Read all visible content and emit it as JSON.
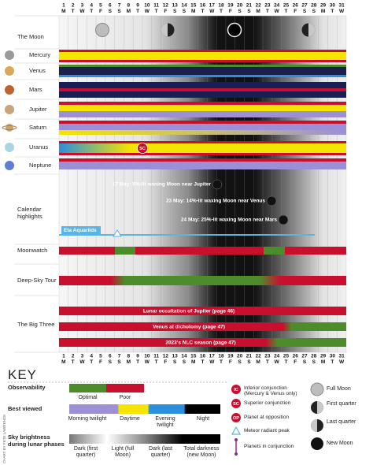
{
  "days": [
    1,
    2,
    3,
    4,
    5,
    6,
    7,
    8,
    9,
    10,
    11,
    12,
    13,
    14,
    15,
    16,
    17,
    18,
    19,
    20,
    21,
    22,
    23,
    24,
    25,
    26,
    27,
    28,
    29,
    30,
    31
  ],
  "weekdays": [
    "M",
    "T",
    "W",
    "T",
    "F",
    "S",
    "S",
    "M",
    "T",
    "W",
    "T",
    "F",
    "S",
    "S",
    "M",
    "T",
    "W",
    "T",
    "F",
    "S",
    "S",
    "M",
    "T",
    "W",
    "T",
    "F",
    "S",
    "S",
    "M",
    "T",
    "W"
  ],
  "row_labels": [
    "The Moon",
    "Mercury",
    "Venus",
    "Mars",
    "Jupiter",
    "Saturn",
    "Uranus",
    "Neptune",
    "Calendar highlights",
    "Moonwatch",
    "Deep-Sky Tour",
    "The Big Three"
  ],
  "sc_marker": "SC",
  "calendar_highlights": {
    "events": [
      "17 May: 5%-lit waning Moon near Jupiter",
      "23 May: 14%-lit waxing Moon near Venus",
      "24 May: 25%-lit waxing Moon near Mars"
    ],
    "meteor_shower": "Eta Aquariids"
  },
  "big_three": [
    "Lunar occultation of Jupiter (page 46)",
    "Venus at dichotomy (page 47)",
    "2023's NLC season (page 47)"
  ],
  "key": {
    "title": "KEY",
    "observability": {
      "heading": "Observability",
      "labels": [
        "Optimal",
        "Poor"
      ]
    },
    "best_viewed": {
      "heading": "Best viewed",
      "labels": [
        "Morning twilight",
        "Daytime",
        "Evening twilight",
        "Night"
      ]
    },
    "sky_brightness": {
      "heading": "Sky brightness during lunar phases",
      "labels": [
        "Dark (first quarter)",
        "Light (full Moon)",
        "Dark (last quarter)",
        "Total darkness (new Moon)"
      ]
    },
    "markers": [
      {
        "code": "IC",
        "label": "Inferior conjunction (Mercury & Venus only)"
      },
      {
        "code": "SC",
        "label": "Superior conjunction"
      },
      {
        "code": "OP",
        "label": "Planet at opposition"
      },
      {
        "label": "Meteor radiant peak"
      },
      {
        "label": "Planets in conjunction"
      }
    ],
    "moon_phases": [
      "Full Moon",
      "First quarter",
      "Last quarter",
      "New Moon"
    ]
  },
  "credit": "CHART BY PETE LAWRENCE"
}
